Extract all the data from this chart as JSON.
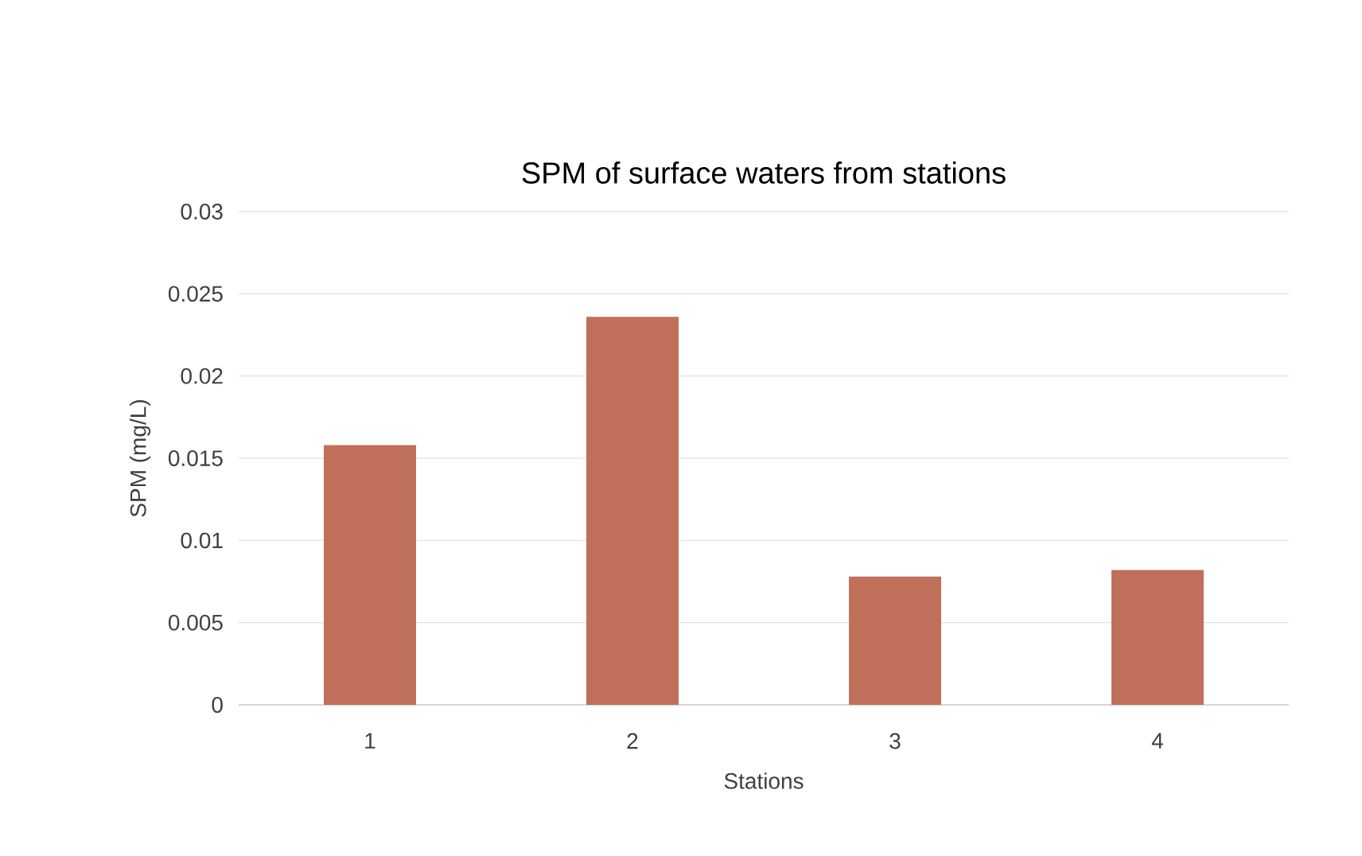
{
  "chart_data": {
    "type": "bar",
    "title": "SPM of surface waters from stations",
    "xlabel": "Stations",
    "ylabel": "SPM (mg/L)",
    "categories": [
      "1",
      "2",
      "3",
      "4"
    ],
    "values": [
      0.0158,
      0.0236,
      0.0078,
      0.0082
    ],
    "color": "#c0705a",
    "ylim": [
      0,
      0.03
    ],
    "yticks": [
      0,
      0.005,
      0.01,
      0.015,
      0.02,
      0.025,
      0.03
    ],
    "grid": "y"
  }
}
